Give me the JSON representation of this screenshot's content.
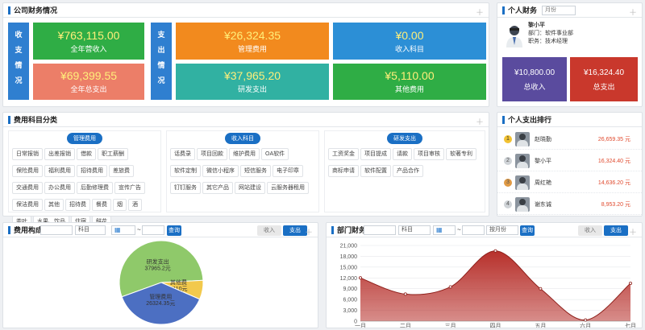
{
  "company": {
    "title": "公司财务情况",
    "income_label": "收支情况",
    "expense_label": "支出情况",
    "tiles": [
      {
        "amount": "¥763,115.00",
        "label": "全年营收入",
        "color": "#2fad45"
      },
      {
        "amount": "¥69,399.55",
        "label": "全年总支出",
        "color": "#ec7e68"
      },
      {
        "amount": "¥26,324.35",
        "label": "管理费用",
        "color": "#f28a1e"
      },
      {
        "amount": "¥0.00",
        "label": "收入科目",
        "color": "#2c8fd6"
      },
      {
        "amount": "¥37,965.20",
        "label": "研发支出",
        "color": "#31b1a2"
      },
      {
        "amount": "¥5,110.00",
        "label": "其他费用",
        "color": "#2fad45"
      }
    ]
  },
  "personal": {
    "title": "个人财务",
    "month_placeholder": "月份",
    "name": "黎小平",
    "dept": "部门：软件事业部",
    "role": "职务：技术经理",
    "income_amount": "¥10,800.00",
    "income_label": "总收入",
    "expense_amount": "¥16,324.40",
    "expense_label": "总支出"
  },
  "categories": {
    "title": "费用科目分类",
    "groups": [
      {
        "name": "管理费用",
        "items": [
          "日常报销",
          "出差报销",
          "借款",
          "职工薪酬",
          "保险费用",
          "福利费用",
          "招待费用",
          "差旅费",
          "交通费用",
          "办公费用",
          "后勤修理费",
          "宣传广告",
          "保洁费用",
          "其他",
          "招待费",
          "餐费",
          "烟",
          "酒",
          "茶叶",
          "水果、饮品",
          "住宿",
          "鲜花"
        ]
      },
      {
        "name": "收入科目",
        "items": [
          "话费录",
          "项目回款",
          "维护费用",
          "OA软件",
          "软件定制",
          "微信小程序",
          "短信服务",
          "电子印章",
          "钉钉服务",
          "其它产品",
          "网站建设",
          "云服务器租用"
        ]
      },
      {
        "name": "研发支出",
        "items": [
          "工资奖金",
          "项目提成",
          "请款",
          "项目审核",
          "软著专利",
          "商标申请",
          "软件配置",
          "产品合作"
        ]
      }
    ]
  },
  "ranking": {
    "title": "个人支出排行",
    "rows": [
      {
        "rank": "1",
        "name": "赵晓勤",
        "amount": "26,659.35 元"
      },
      {
        "rank": "2",
        "name": "黎小平",
        "amount": "16,324.40 元"
      },
      {
        "rank": "3",
        "name": "周红艳",
        "amount": "14,636.20 元"
      },
      {
        "rank": "4",
        "name": "谢东诚",
        "amount": "8,953.20 元"
      }
    ]
  },
  "cost": {
    "title": "费用构成",
    "subject_placeholder": "科目",
    "query": "查询",
    "income_tab": "收入",
    "expense_tab": "支出",
    "chart_data": {
      "type": "pie",
      "slices": [
        {
          "name": "研发支出",
          "value": 37965.2,
          "label": "研发支出\n37965.2元",
          "color": "#8fc96a"
        },
        {
          "name": "其他费",
          "value": 5110,
          "label": "其他费\n5110元",
          "color": "#f2c94c"
        },
        {
          "name": "管理费用",
          "value": 26324.35,
          "label": "管理费用\n26324.35元",
          "color": "#4c6fc2"
        }
      ]
    }
  },
  "dept": {
    "title": "部门财务",
    "subject_placeholder": "科目",
    "month_placeholder": "按月份",
    "query": "查询",
    "income_tab": "收入",
    "expense_tab": "支出",
    "chart_data": {
      "type": "area",
      "categories": [
        "一月",
        "二月",
        "三月",
        "四月",
        "五月",
        "六月",
        "七月"
      ],
      "series": [
        {
          "values": [
            12000,
            7500,
            9500,
            19500,
            9000,
            300,
            10500
          ]
        }
      ],
      "ylim": [
        0,
        21000
      ],
      "yticks": [
        "0",
        "3,000",
        "6,000",
        "9,000",
        "12,000",
        "15,000",
        "18,000",
        "21,000"
      ],
      "color": "#b7302b"
    }
  }
}
